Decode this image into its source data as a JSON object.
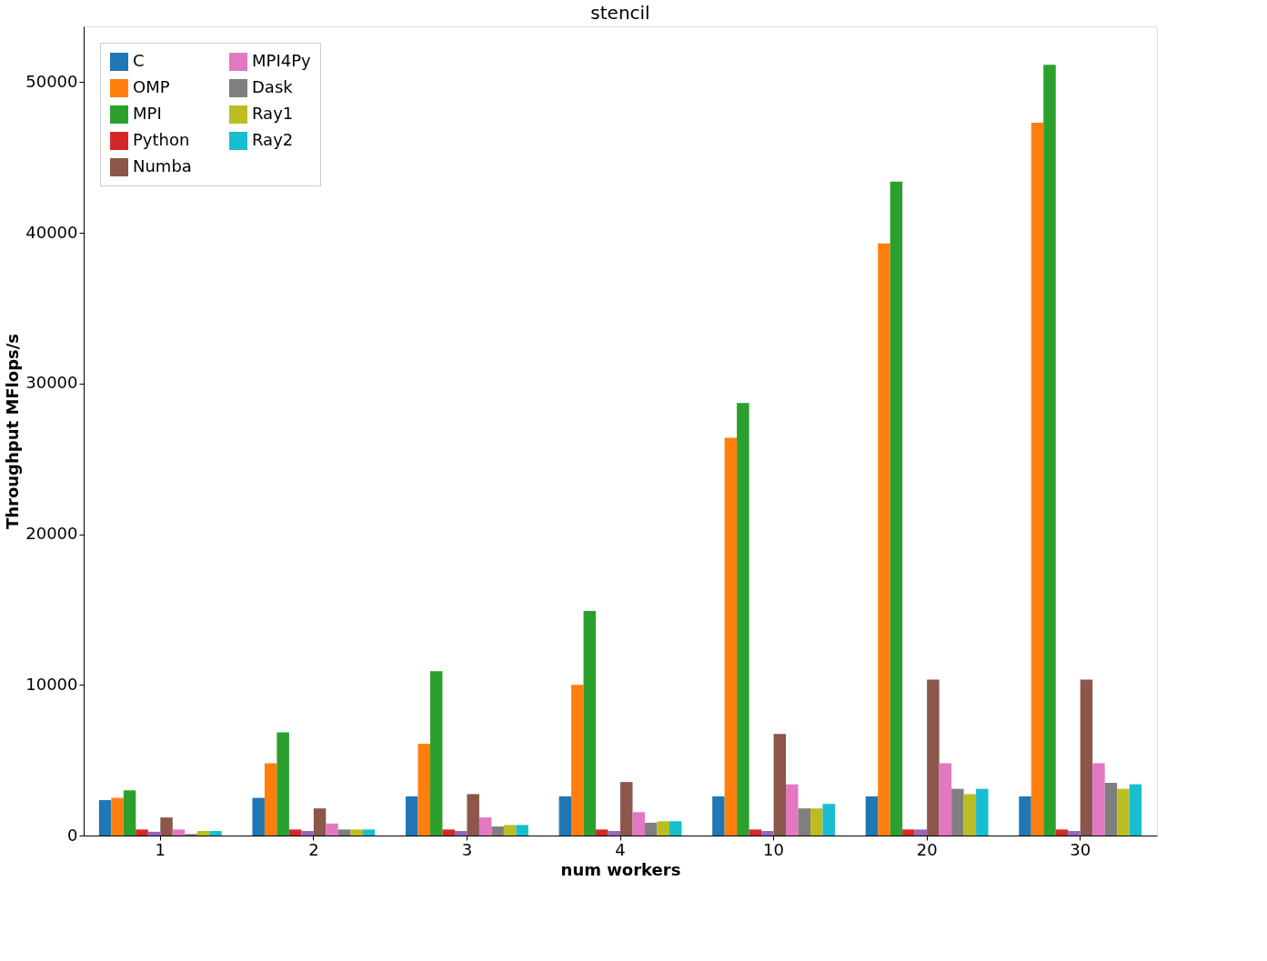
{
  "chart_data": {
    "type": "bar",
    "title": "stencil",
    "xlabel": "num workers",
    "ylabel": "Throughput MFlops/s",
    "categories": [
      "1",
      "2",
      "3",
      "4",
      "10",
      "20",
      "30"
    ],
    "ylim": [
      0,
      53700
    ],
    "yticks": [
      0,
      10000,
      20000,
      30000,
      40000,
      50000
    ],
    "grid": false,
    "legend": "top left",
    "series": [
      {
        "name": "C",
        "color": "#1f77b4",
        "values": [
          2350,
          2500,
          2600,
          2600,
          2600,
          2600,
          2600
        ]
      },
      {
        "name": "OMP",
        "color": "#ff7f0e",
        "values": [
          2500,
          4800,
          6100,
          10000,
          26400,
          39300,
          47300
        ]
      },
      {
        "name": "MPI",
        "color": "#2ca02c",
        "values": [
          3000,
          6850,
          10900,
          14900,
          28700,
          43400,
          51150
        ]
      },
      {
        "name": "Python",
        "color": "#d62728",
        "values": [
          400,
          400,
          400,
          400,
          400,
          400,
          400
        ]
      },
      {
        "color": "#9467bd",
        "values": [
          250,
          300,
          300,
          300,
          300,
          400,
          300
        ]
      },
      {
        "name": "Numba",
        "color": "#8c564b",
        "values": [
          1200,
          1800,
          2750,
          3550,
          6750,
          10350,
          10350
        ]
      },
      {
        "name": "MPI4Py",
        "color": "#e377c2",
        "values": [
          400,
          800,
          1200,
          1550,
          3400,
          4800,
          4800
        ]
      },
      {
        "name": "Dask",
        "color": "#7f7f7f",
        "values": [
          100,
          400,
          600,
          850,
          1800,
          3100,
          3500
        ]
      },
      {
        "name": "Ray1",
        "color": "#bcbd22",
        "values": [
          300,
          400,
          700,
          950,
          1800,
          2750,
          3100
        ]
      },
      {
        "name": "Ray2",
        "color": "#17becf",
        "values": [
          300,
          400,
          700,
          950,
          2100,
          3100,
          3400
        ]
      }
    ]
  }
}
